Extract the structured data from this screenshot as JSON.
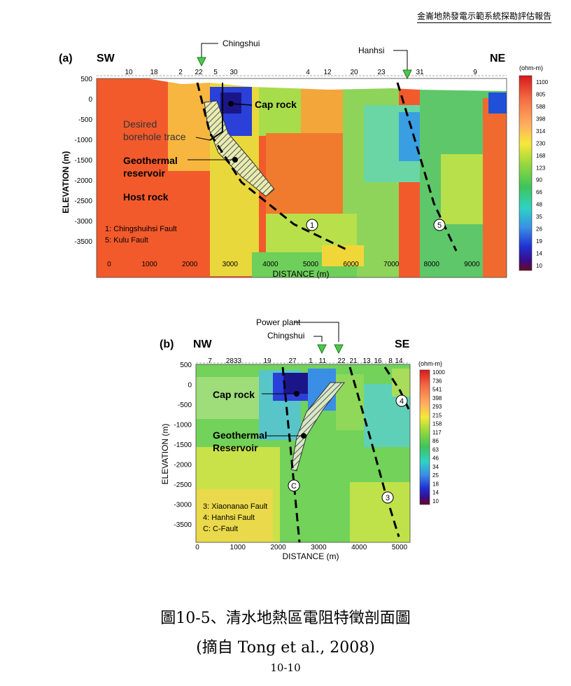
{
  "header": "金崙地熱發電示範系統探勘評估報告",
  "panel_a": {
    "label": "(a)",
    "left_dir": "SW",
    "right_dir": "NE",
    "ylabel": "ELEVATION (m)",
    "xlabel": "DISTANCE (m)",
    "xticks": [
      "0",
      "1000",
      "2000",
      "3000",
      "4000",
      "5000",
      "6000",
      "7000",
      "8000",
      "9000"
    ],
    "yticks": [
      "500",
      "0",
      "-500",
      "-1000",
      "-1500",
      "-2000",
      "-2500",
      "-3000",
      "-3500"
    ],
    "stations": [
      "10",
      "18",
      "2",
      "22",
      "5",
      "30",
      "4",
      "12",
      "20",
      "23",
      "31",
      "9"
    ],
    "pointers": [
      "Chingshui",
      "Hanhsi"
    ],
    "annotations": {
      "cap_rock": "Cap rock",
      "desired_1": "Desired",
      "desired_2": "borehole trace",
      "geo_1": "Geothermal",
      "geo_2": "reservoir",
      "host": "Host rock"
    },
    "fault_labels": [
      "1",
      "5"
    ],
    "legend_lines": [
      "1: Chingshuihsi Fault",
      "5: Kulu Fault"
    ],
    "colorbar_title": "(ohm-m)",
    "colorbar_ticks": [
      "1100",
      "805",
      "588",
      "398",
      "314",
      "230",
      "168",
      "123",
      "90",
      "66",
      "48",
      "35",
      "26",
      "19",
      "14",
      "10"
    ]
  },
  "panel_b": {
    "label": "(b)",
    "left_dir": "NW",
    "right_dir": "SE",
    "ylabel": "ELEVATION (m)",
    "xlabel": "DISTANCE (m)",
    "xticks": [
      "0",
      "1000",
      "2000",
      "3000",
      "4000",
      "5000"
    ],
    "yticks": [
      "500",
      "0",
      "-500",
      "-1000",
      "-1500",
      "-2000",
      "-2500",
      "-3000",
      "-3500"
    ],
    "stations": [
      "7",
      "2833",
      "19",
      "27",
      "1",
      "11",
      "22",
      "21",
      "13",
      "16",
      "8",
      "14"
    ],
    "pointers": [
      "Power plant",
      "Chingshui"
    ],
    "annotations": {
      "cap_rock": "Cap rock",
      "geo_1": "Geothermal",
      "geo_2": "Reservoir"
    },
    "fault_labels": [
      "4",
      "C",
      "3"
    ],
    "legend_lines": [
      "3: Xiaonanao Fault",
      "4: Hanhsi Fault",
      "C: C-Fault"
    ],
    "colorbar_title": "(ohm-m)",
    "colorbar_ticks": [
      "1000",
      "736",
      "541",
      "398",
      "293",
      "215",
      "158",
      "117",
      "86",
      "63",
      "46",
      "34",
      "25",
      "18",
      "14",
      "10"
    ]
  },
  "caption": {
    "line1": "圖10-5、清水地熱區電阻特徵剖面圖",
    "line2": "(摘自  Tong et al., 2008)"
  },
  "page_number": "10-10"
}
